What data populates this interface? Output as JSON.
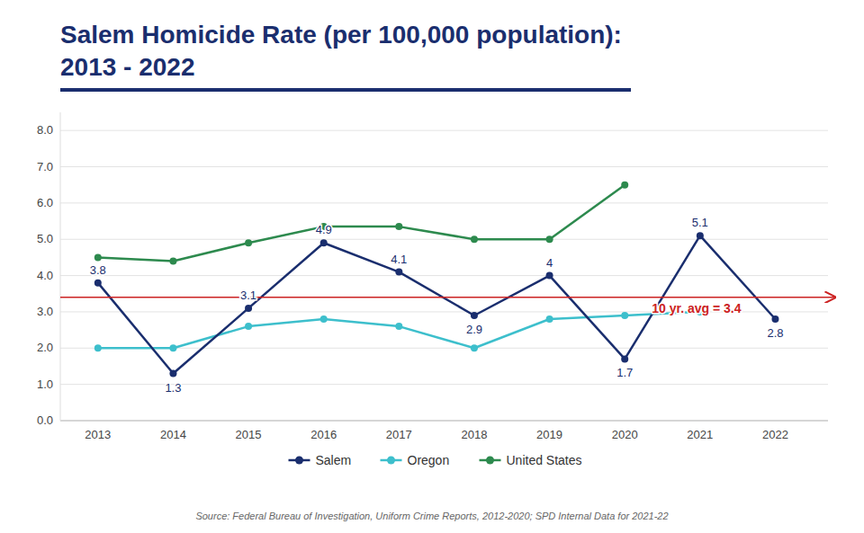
{
  "chart_data": {
    "type": "line",
    "title": "Salem Homicide Rate (per 100,000 population):",
    "subtitle": "2013 - 2022",
    "title_color": "#1a2e6e",
    "x": [
      2013,
      2014,
      2015,
      2016,
      2017,
      2018,
      2019,
      2020,
      2021,
      2022
    ],
    "xlim": [
      2012.5,
      2022.7
    ],
    "xticks": [
      2013,
      2014,
      2015,
      2016,
      2017,
      2018,
      2019,
      2020,
      2021,
      2022
    ],
    "ylim": [
      0.0,
      8.5
    ],
    "yticks": [
      {
        "value": 0.0,
        "label": "0.0"
      },
      {
        "value": 1.0,
        "label": "1.0"
      },
      {
        "value": 2.0,
        "label": "2.0"
      },
      {
        "value": 3.0,
        "label": "3.0"
      },
      {
        "value": 4.0,
        "label": "4.0"
      },
      {
        "value": 5.0,
        "label": "5.0"
      },
      {
        "value": 6.0,
        "label": "6.0"
      },
      {
        "value": 7.0,
        "label": "7.0"
      },
      {
        "value": 8.0,
        "label": "8.0"
      }
    ],
    "grid": true,
    "legend": "bottom",
    "series": [
      {
        "name": "Salem",
        "color": "#1a2e6e",
        "marker": "circle",
        "data_labels": true,
        "values": [
          3.8,
          1.3,
          3.1,
          4.9,
          4.1,
          2.9,
          4.0,
          1.7,
          5.1,
          2.8
        ]
      },
      {
        "name": "Oregon",
        "color": "#3dbfcc",
        "marker": "circle",
        "values": [
          2.0,
          2.0,
          2.6,
          2.8,
          2.6,
          2.0,
          2.8,
          2.9,
          3.0,
          null
        ]
      },
      {
        "name": "United States",
        "color": "#2d8a4e",
        "marker": "circle",
        "values": [
          4.5,
          4.4,
          4.9,
          5.35,
          5.35,
          5.0,
          5.0,
          6.5,
          null,
          null
        ]
      }
    ],
    "annotations": [
      {
        "type": "hline",
        "value": 3.4,
        "label": "10 yr. avg = 3.4",
        "color": "#cc2222"
      }
    ],
    "source": "Source: Federal Bureau of Investigation, Uniform Crime Reports, 2012-2020; SPD Internal Data for 2021-22"
  }
}
